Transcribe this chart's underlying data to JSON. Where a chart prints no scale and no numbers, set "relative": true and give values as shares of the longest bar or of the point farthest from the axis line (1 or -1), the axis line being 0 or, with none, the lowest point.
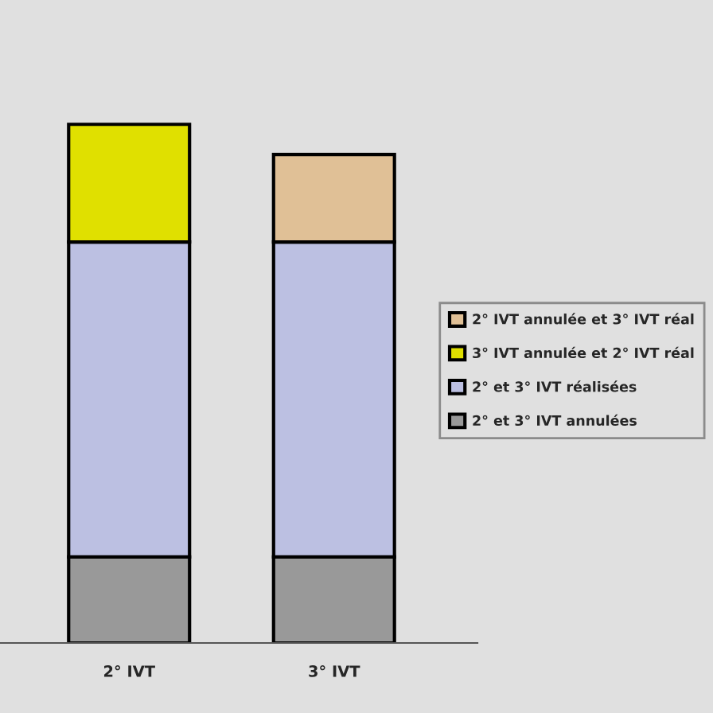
{
  "chart_data": {
    "type": "bar",
    "stacked": true,
    "relative": true,
    "categories": [
      "2° IVT",
      "3° IVT"
    ],
    "series": [
      {
        "name": "2° et 3° IVT annulées",
        "color": "#999999",
        "values": [
          0.166,
          0.166
        ]
      },
      {
        "name": "2° et 3° IVT réalisées",
        "color": "#bcc0e2",
        "values": [
          0.607,
          0.607
        ]
      },
      {
        "name": "3° IVT annulée et 2° IVT réal",
        "color": "#e0e000",
        "values": [
          0.227,
          0
        ]
      },
      {
        "name": "2° IVT annulée et 3° IVT réal",
        "color": "#e0c096",
        "values": [
          0,
          0.169
        ]
      }
    ],
    "legend": "right",
    "grid": false
  }
}
